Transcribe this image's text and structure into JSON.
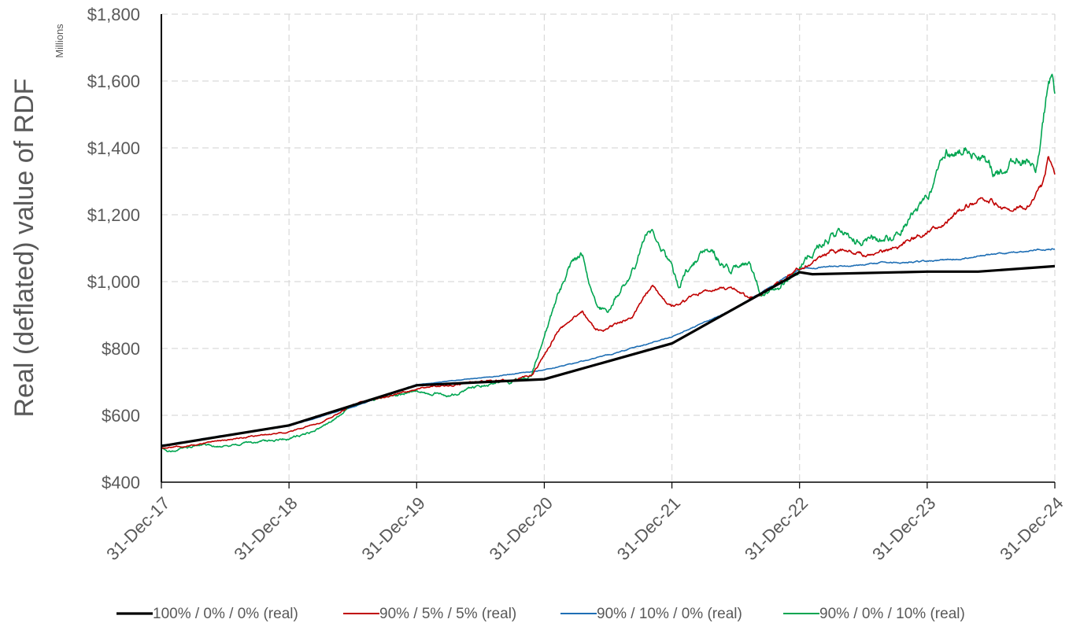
{
  "chart_data": {
    "type": "line",
    "title": "",
    "xlabel": "",
    "ylabel": "Real (deflated) value of RDF",
    "y_units_label": "Millions",
    "ylim": [
      400,
      1800
    ],
    "y_ticks": [
      400,
      600,
      800,
      1000,
      1200,
      1400,
      1600,
      1800
    ],
    "y_tick_labels": [
      "$400",
      "$600",
      "$800",
      "$1,000",
      "$1,200",
      "$1,400",
      "$1,600",
      "$1,800"
    ],
    "x_ticks": [
      0,
      1,
      2,
      3,
      4,
      5,
      6,
      7
    ],
    "x_tick_labels": [
      "31-Dec-17",
      "31-Dec-18",
      "31-Dec-19",
      "31-Dec-20",
      "31-Dec-21",
      "31-Dec-22",
      "31-Dec-23",
      "31-Dec-24"
    ],
    "x_unit": "years since 31-Dec-17",
    "grid": true,
    "legend_position": "bottom",
    "series": [
      {
        "name": "100% / 0% / 0% (real)",
        "color": "#000000",
        "style": "bold",
        "points": [
          [
            0,
            508
          ],
          [
            1,
            570
          ],
          [
            2,
            690
          ],
          [
            3,
            708
          ],
          [
            4,
            815
          ],
          [
            5,
            1028
          ],
          [
            5.1,
            1022
          ],
          [
            6,
            1030
          ],
          [
            6.4,
            1030
          ],
          [
            7,
            1046
          ]
        ]
      },
      {
        "name": "90% / 5% / 5% (real)",
        "color": "#c00000",
        "style": "noisy",
        "points": [
          [
            0,
            502
          ],
          [
            0.25,
            510
          ],
          [
            0.5,
            525
          ],
          [
            0.75,
            540
          ],
          [
            1,
            550
          ],
          [
            1.25,
            580
          ],
          [
            1.5,
            630
          ],
          [
            1.75,
            655
          ],
          [
            2,
            680
          ],
          [
            2.25,
            690
          ],
          [
            2.5,
            700
          ],
          [
            2.75,
            705
          ],
          [
            2.9,
            720
          ],
          [
            3.0,
            780
          ],
          [
            3.1,
            850
          ],
          [
            3.2,
            880
          ],
          [
            3.3,
            910
          ],
          [
            3.4,
            855
          ],
          [
            3.5,
            860
          ],
          [
            3.6,
            880
          ],
          [
            3.7,
            900
          ],
          [
            3.8,
            965
          ],
          [
            3.85,
            985
          ],
          [
            3.9,
            960
          ],
          [
            4.0,
            925
          ],
          [
            4.1,
            940
          ],
          [
            4.2,
            965
          ],
          [
            4.35,
            985
          ],
          [
            4.5,
            975
          ],
          [
            4.6,
            950
          ],
          [
            4.7,
            965
          ],
          [
            4.85,
            1000
          ],
          [
            5.0,
            1040
          ],
          [
            5.1,
            1060
          ],
          [
            5.25,
            1090
          ],
          [
            5.5,
            1085
          ],
          [
            5.75,
            1095
          ],
          [
            6.0,
            1150
          ],
          [
            6.15,
            1170
          ],
          [
            6.3,
            1230
          ],
          [
            6.5,
            1240
          ],
          [
            6.65,
            1210
          ],
          [
            6.8,
            1230
          ],
          [
            6.9,
            1280
          ],
          [
            6.95,
            1375
          ],
          [
            7.0,
            1325
          ]
        ]
      },
      {
        "name": "90% / 10% / 0% (real)",
        "color": "#1f6fb5",
        "style": "noisy",
        "points": [
          [
            0,
            510
          ],
          [
            0.5,
            540
          ],
          [
            1,
            568
          ],
          [
            1.5,
            625
          ],
          [
            2,
            692
          ],
          [
            2.5,
            712
          ],
          [
            3,
            735
          ],
          [
            3.5,
            780
          ],
          [
            4,
            835
          ],
          [
            4.5,
            920
          ],
          [
            5,
            1038
          ],
          [
            5.5,
            1052
          ],
          [
            6,
            1060
          ],
          [
            6.5,
            1080
          ],
          [
            7,
            1100
          ]
        ]
      },
      {
        "name": "90% / 0% / 10% (real)",
        "color": "#00a550",
        "style": "noisy",
        "points": [
          [
            0,
            505
          ],
          [
            0.05,
            490
          ],
          [
            0.25,
            510
          ],
          [
            0.5,
            510
          ],
          [
            0.75,
            520
          ],
          [
            1,
            530
          ],
          [
            1.25,
            560
          ],
          [
            1.5,
            630
          ],
          [
            1.75,
            655
          ],
          [
            2,
            670
          ],
          [
            2.25,
            660
          ],
          [
            2.5,
            690
          ],
          [
            2.75,
            700
          ],
          [
            2.9,
            720
          ],
          [
            3.0,
            830
          ],
          [
            3.1,
            950
          ],
          [
            3.2,
            1050
          ],
          [
            3.3,
            1075
          ],
          [
            3.4,
            930
          ],
          [
            3.5,
            920
          ],
          [
            3.6,
            980
          ],
          [
            3.7,
            1040
          ],
          [
            3.8,
            1130
          ],
          [
            3.85,
            1160
          ],
          [
            3.95,
            1080
          ],
          [
            4.05,
            990
          ],
          [
            4.15,
            1050
          ],
          [
            4.25,
            1080
          ],
          [
            4.3,
            1095
          ],
          [
            4.45,
            1030
          ],
          [
            4.6,
            1060
          ],
          [
            4.7,
            955
          ],
          [
            4.85,
            980
          ],
          [
            5.0,
            1045
          ],
          [
            5.15,
            1110
          ],
          [
            5.3,
            1140
          ],
          [
            5.5,
            1120
          ],
          [
            5.75,
            1140
          ],
          [
            6.0,
            1250
          ],
          [
            6.15,
            1380
          ],
          [
            6.3,
            1410
          ],
          [
            6.4,
            1380
          ],
          [
            6.55,
            1320
          ],
          [
            6.7,
            1370
          ],
          [
            6.85,
            1340
          ],
          [
            6.95,
            1600
          ],
          [
            6.98,
            1640
          ],
          [
            7.0,
            1560
          ]
        ]
      }
    ]
  }
}
